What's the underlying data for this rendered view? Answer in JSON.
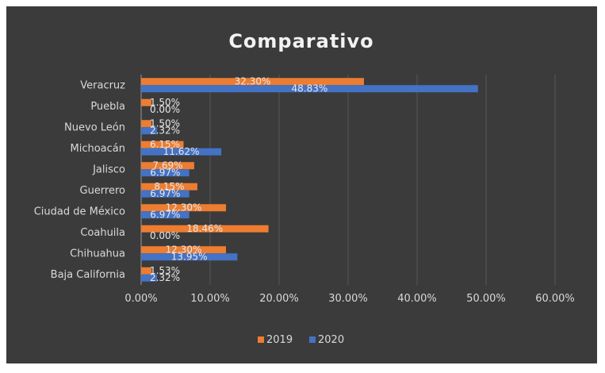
{
  "chart_data": {
    "type": "bar",
    "orientation": "horizontal",
    "title": "Comparativo",
    "categories": [
      "Veracruz",
      "Puebla",
      "Nuevo León",
      "Michoacán",
      "Jalisco",
      "Guerrero",
      "Ciudad de México",
      "Coahuila",
      "Chihuahua",
      "Baja California"
    ],
    "series": [
      {
        "name": "2019",
        "color": "#ed7d31",
        "values": [
          32.3,
          1.5,
          1.5,
          6.15,
          7.69,
          8.15,
          12.3,
          18.46,
          12.3,
          1.53
        ],
        "labels": [
          "32.30%",
          "1.50%",
          "1.50%",
          "6.15%",
          "7.69%",
          "8.15%",
          "12.30%",
          "18.46%",
          "12.30%",
          "1.53%"
        ]
      },
      {
        "name": "2020",
        "color": "#4472c4",
        "values": [
          48.83,
          0.0,
          2.32,
          11.62,
          6.97,
          6.97,
          6.97,
          0.0,
          13.95,
          2.32
        ],
        "labels": [
          "48.83%",
          "0.00%",
          "2.32%",
          "11.62%",
          "6.97%",
          "6.97%",
          "6.97%",
          "0.00%",
          "13.95%",
          "2.32%"
        ]
      }
    ],
    "xlim": [
      0,
      60
    ],
    "xticks": [
      "0.00%",
      "10.00%",
      "20.00%",
      "30.00%",
      "40.00%",
      "50.00%",
      "60.00%"
    ],
    "grid": true,
    "legend_position": "bottom"
  }
}
